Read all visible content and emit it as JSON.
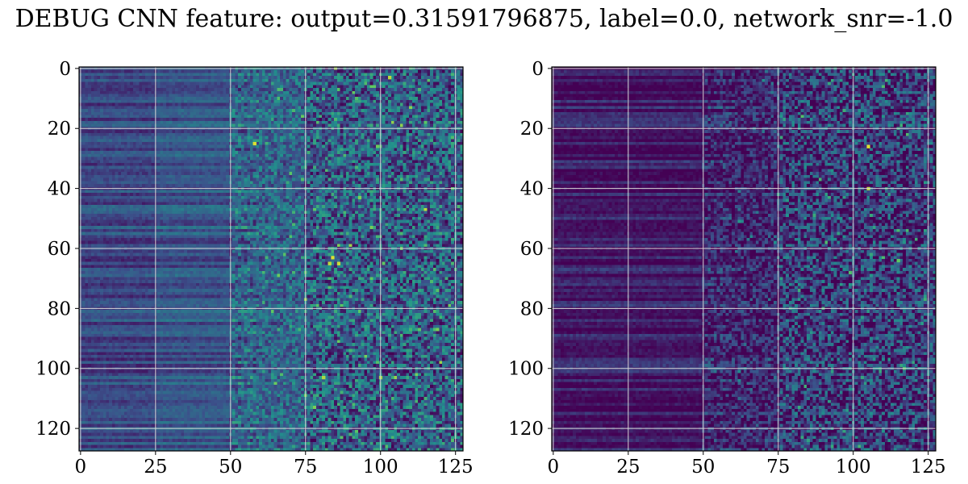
{
  "title": "DEBUG CNN feature: output=0.31591796875, label=0.0, network_snr=-1.0",
  "chart_data": [
    {
      "type": "heatmap",
      "colormap": "viridis",
      "grid": true,
      "shape": [
        128,
        128
      ],
      "xlim": [
        0,
        127
      ],
      "ylim": [
        127,
        0
      ],
      "xticks": [
        0,
        25,
        50,
        75,
        100,
        125
      ],
      "yticks": [
        0,
        20,
        40,
        60,
        80,
        100,
        120
      ],
      "xtick_labels": [
        "0",
        "25",
        "50",
        "75",
        "100",
        "125"
      ],
      "ytick_labels": [
        "0",
        "20",
        "40",
        "60",
        "80",
        "100",
        "120"
      ],
      "value_range": [
        0,
        1
      ],
      "column_bands": [
        {
          "cols": [
            0,
            25
          ],
          "mean": 0.22
        },
        {
          "cols": [
            25,
            50
          ],
          "mean": 0.27
        },
        {
          "cols": [
            50,
            75
          ],
          "mean": 0.33
        },
        {
          "cols": [
            75,
            127
          ],
          "mean": 0.3
        }
      ],
      "hotspots": [
        {
          "x": 58,
          "y": 25,
          "value": 0.95
        },
        {
          "x": 84,
          "y": 63,
          "value": 0.95
        },
        {
          "x": 86,
          "y": 65,
          "value": 0.92
        },
        {
          "x": 83,
          "y": 65,
          "value": 0.9
        },
        {
          "x": 103,
          "y": 3,
          "value": 0.9
        },
        {
          "x": 81,
          "y": 103,
          "value": 0.88
        },
        {
          "x": 100,
          "y": 103,
          "value": 0.85
        },
        {
          "x": 93,
          "y": 43,
          "value": 0.8
        }
      ]
    },
    {
      "type": "heatmap",
      "colormap": "viridis",
      "grid": true,
      "shape": [
        128,
        128
      ],
      "xlim": [
        0,
        127
      ],
      "ylim": [
        127,
        0
      ],
      "xticks": [
        0,
        25,
        50,
        75,
        100,
        125
      ],
      "yticks": [
        0,
        20,
        40,
        60,
        80,
        100,
        120
      ],
      "xtick_labels": [
        "0",
        "25",
        "50",
        "75",
        "100",
        "125"
      ],
      "ytick_labels": [
        "0",
        "20",
        "40",
        "60",
        "80",
        "100",
        "120"
      ],
      "value_range": [
        0,
        1
      ],
      "column_bands": [
        {
          "cols": [
            0,
            50
          ],
          "mean": 0.08
        },
        {
          "cols": [
            50,
            75
          ],
          "mean": 0.11
        },
        {
          "cols": [
            75,
            127
          ],
          "mean": 0.18
        }
      ],
      "hotspots": [
        {
          "x": 105,
          "y": 26,
          "value": 0.95
        },
        {
          "x": 105,
          "y": 40,
          "value": 0.9
        },
        {
          "x": 115,
          "y": 64,
          "value": 0.75
        },
        {
          "x": 99,
          "y": 68,
          "value": 0.7
        }
      ]
    }
  ]
}
